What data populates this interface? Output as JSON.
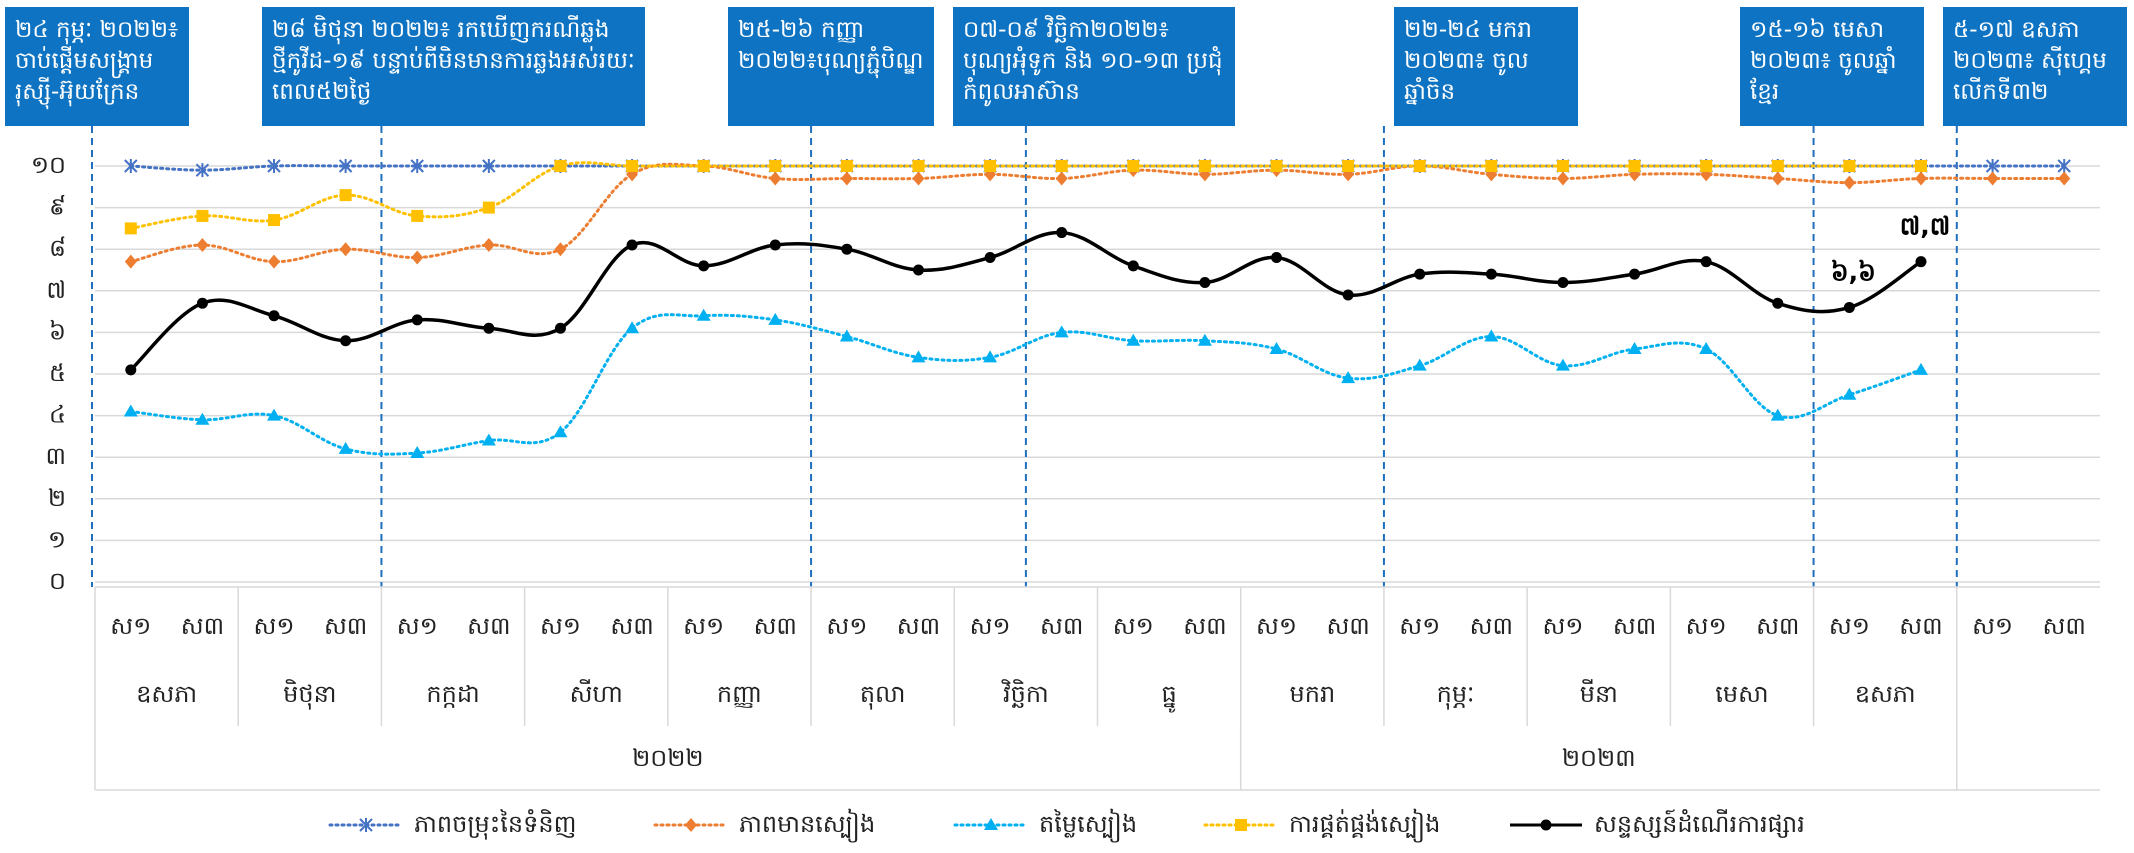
{
  "chart_data": {
    "type": "line",
    "title": "",
    "ylim": [
      0,
      10
    ],
    "yticks": [
      "០",
      "១",
      "២",
      "៣",
      "៤",
      "៥",
      "៦",
      "៧",
      "៨",
      "៩",
      "១០"
    ],
    "x_week_labels": [
      "ស១",
      "ស៣",
      "ស១",
      "ស៣",
      "ស១",
      "ស៣",
      "ស១",
      "ស៣",
      "ស១",
      "ស៣",
      "ស១",
      "ស៣",
      "ស១",
      "ស៣",
      "ស១",
      "ស៣",
      "ស១",
      "ស៣",
      "ស១",
      "ស៣",
      "ស១",
      "ស៣",
      "ស១",
      "ស៣",
      "ស១",
      "ស៣",
      "ស១",
      "ស៣"
    ],
    "months": [
      "ឧសភា",
      "មិថុនា",
      "កក្កដា",
      "សីហា",
      "កញ្ញា",
      "តុលា",
      "វិច្ឆិកា",
      "ធ្នូ",
      "មករា",
      "កុម្ភៈ",
      "មីនា",
      "មេសា",
      "ឧសភា"
    ],
    "years": [
      {
        "label": "២០២២",
        "months": 8
      },
      {
        "label": "២០២៣",
        "months": 5
      }
    ],
    "legend_position": "bottom",
    "series": [
      {
        "name": "ភាពចម្រុះនៃទំនិញ",
        "color": "#4472c4",
        "style": "dotted",
        "marker": "star",
        "values": [
          10,
          9.9,
          10,
          10,
          10,
          10,
          10,
          10,
          10,
          10,
          10,
          10,
          10,
          10,
          10,
          10,
          10,
          10,
          10,
          10,
          10,
          10,
          10,
          10,
          10,
          10,
          10,
          10
        ]
      },
      {
        "name": "ភាពមានស្បៀង",
        "color": "#ed7d31",
        "style": "dotted",
        "marker": "diamond",
        "values": [
          7.7,
          8.1,
          7.7,
          8.0,
          7.8,
          8.1,
          8.0,
          9.8,
          10,
          9.7,
          9.7,
          9.7,
          9.8,
          9.7,
          9.9,
          9.8,
          9.9,
          9.8,
          10,
          9.8,
          9.7,
          9.8,
          9.8,
          9.7,
          9.6,
          9.7,
          9.7,
          9.7
        ]
      },
      {
        "name": "តម្លៃស្បៀង",
        "color": "#00b0f0",
        "style": "dotted",
        "marker": "triangle",
        "values": [
          4.1,
          3.9,
          4.0,
          3.2,
          3.1,
          3.4,
          3.6,
          6.1,
          6.4,
          6.3,
          5.9,
          5.4,
          5.4,
          6.0,
          5.8,
          5.8,
          5.6,
          4.9,
          5.2,
          5.9,
          5.2,
          5.6,
          5.6,
          4.0,
          4.5,
          5.1
        ]
      },
      {
        "name": "ការផ្គត់ផ្គង់ស្បៀង",
        "color": "#ffc000",
        "style": "dotted",
        "marker": "square",
        "values": [
          8.5,
          8.8,
          8.7,
          9.3,
          8.8,
          9.0,
          10,
          10,
          10,
          10,
          10,
          10,
          10,
          10,
          10,
          10,
          10,
          10,
          10,
          10,
          10,
          10,
          10,
          10,
          10,
          10
        ]
      },
      {
        "name": "សន្ទស្សន៍ដំណើរការផ្សារ",
        "color": "#000000",
        "style": "solid",
        "marker": "circle",
        "values": [
          5.1,
          6.7,
          6.4,
          5.8,
          6.3,
          6.1,
          6.1,
          8.1,
          7.6,
          8.1,
          8.0,
          7.5,
          7.8,
          8.4,
          7.6,
          7.2,
          7.8,
          6.9,
          7.4,
          7.4,
          7.2,
          7.4,
          7.7,
          6.7,
          6.6,
          7.7
        ]
      }
    ],
    "point_labels": [
      {
        "series": 4,
        "index": 24,
        "text": "៦,៦"
      },
      {
        "series": 4,
        "index": 25,
        "text": "៧,៧"
      }
    ],
    "annotations": [
      {
        "text": "២៤ កុម្ភៈ ២០២២៖ ចាប់ផ្តើមសង្គ្រាម រុស្ស៊ី-អ៊ុយក្រែន",
        "at": 0
      },
      {
        "text": "២៨ មិថុនា ២០២២៖ រកឃើញករណីឆ្លងថ្មីកូវីដ-១៩ បន្ទាប់ពីមិនមានការឆ្លងអស់រយៈពេល៥២ថ្ងៃ",
        "at": 3
      },
      {
        "text": "២៥-២៦ កញ្ញា ២០២២៖បុណ្យភ្ជុំបិណ្ឌ",
        "at": 9
      },
      {
        "text": "០៧-០៩ វិច្ឆិកា២០២២៖ បុណ្យអុំទូក និង ១០-១៣ ប្រជុំកំពូលអាស៊ាន",
        "at": 12
      },
      {
        "text": "២២-២៤ មករា ២០២៣៖ ចូលឆ្នាំចិន",
        "at": 17
      },
      {
        "text": "១៥-១៦ មេសា ២០២៣៖ ចូលឆ្នាំខ្មែរ",
        "at": 23
      },
      {
        "text": "៥-១៧ ឧសភា ២០២៣៖ ស៊ីហ្គេមលើកទី៣២",
        "at": 25
      }
    ]
  }
}
